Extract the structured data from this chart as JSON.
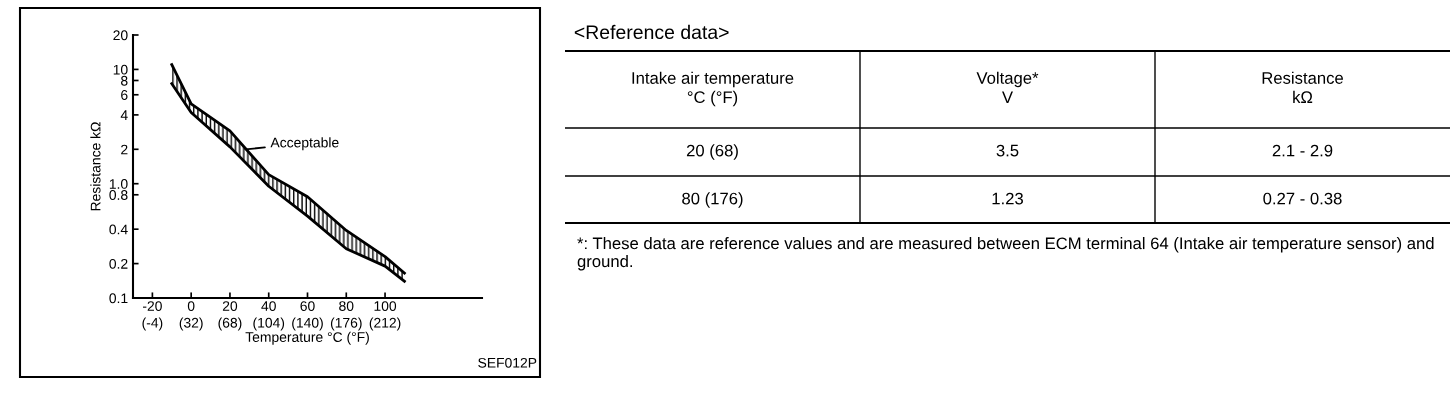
{
  "chart_data": [
    {
      "type": "area",
      "xlabel": "Temperature °C (°F)",
      "ylabel": "Resistance kΩ",
      "log": "y",
      "x": [
        -10,
        0,
        20,
        40,
        60,
        80,
        100,
        110
      ],
      "series": [
        {
          "type": "line",
          "color": "#000000",
          "values": [
            7.5,
            4.2,
            2.1,
            0.95,
            0.52,
            0.27,
            0.19,
            0.14
          ]
        },
        {
          "type": "area",
          "color": "#000000",
          "values": [
            11,
            5,
            2.9,
            1.2,
            0.77,
            0.39,
            0.23,
            0.165
          ]
        }
      ],
      "xlim": [
        -30,
        150
      ],
      "xticks": [
        -20,
        0,
        20,
        40,
        60,
        80,
        100
      ],
      "x2lim": [
        -22,
        302
      ],
      "x2ticks": [
        {
          "value": -4,
          "label": "(-4)"
        },
        {
          "value": 32,
          "label": "(32)"
        },
        {
          "value": 68,
          "label": "(68)"
        },
        {
          "value": 104,
          "label": "(104)"
        },
        {
          "value": 140,
          "label": "(140)"
        },
        {
          "value": 176,
          "label": "(176)"
        },
        {
          "value": 212,
          "label": "(212)"
        }
      ],
      "ylim": [
        0.1,
        20
      ],
      "yticks": [
        0.1,
        0.2,
        0.4,
        0.8,
        {
          "value": 1,
          "label": "1.0"
        },
        2,
        4,
        6,
        8,
        10,
        20
      ],
      "annotations": [
        {
          "text": "Acceptable",
          "x": 28,
          "y": 2.0
        },
        "SEF012P"
      ]
    },
    {
      "type": "other",
      "title": "<Reference data>",
      "categories": [
        "Intake air temperature\n°C (°F)",
        "Voltage*\nV",
        "Resistance\nkΩ"
      ],
      "annotations": [
        "20 (68)",
        "3.5",
        "2.1 - 2.9",
        "80 (176)",
        "1.23",
        "0.27 - 0.38",
        "*: These data are reference values and are measured between ECM terminal 64 (Intake air temperature sensor) and ground."
      ]
    }
  ]
}
